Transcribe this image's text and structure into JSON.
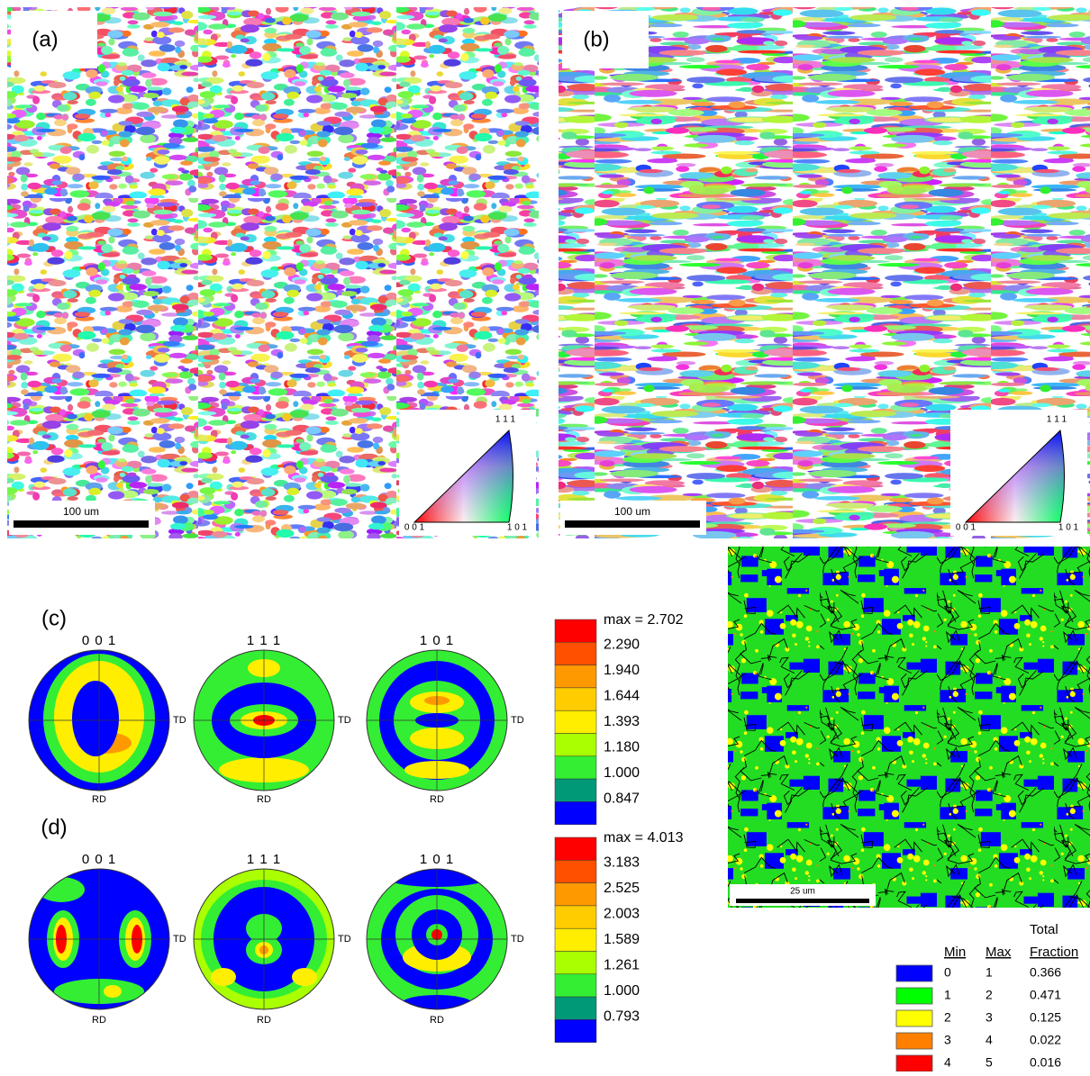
{
  "panels": {
    "a": {
      "label": "(a)",
      "scale_bar": "100 um",
      "ipf": {
        "top": "1 1 1",
        "left": "0 0 1",
        "right": "1 0 1"
      }
    },
    "b": {
      "label": "(b)",
      "scale_bar": "100 um",
      "ipf": {
        "top": "1 1 1",
        "left": "0 0 1",
        "right": "1 0 1"
      }
    }
  },
  "pole_figures": [
    {
      "label": "(c)",
      "figures": [
        {
          "title": "0 0 1",
          "td": "TD",
          "rd": "RD"
        },
        {
          "title": "1 1 1",
          "td": "TD",
          "rd": "RD"
        },
        {
          "title": "1 0 1",
          "td": "TD",
          "rd": "RD"
        }
      ],
      "colorbar": {
        "max": "max = 2.702",
        "levels": [
          "2.290",
          "1.940",
          "1.644",
          "1.393",
          "1.180",
          "1.000",
          "0.847"
        ]
      }
    },
    {
      "label": "(d)",
      "figures": [
        {
          "title": "0 0 1",
          "td": "TD",
          "rd": "RD"
        },
        {
          "title": "1 1 1",
          "td": "TD",
          "rd": "RD"
        },
        {
          "title": "1 0 1",
          "td": "TD",
          "rd": "RD"
        }
      ],
      "colorbar": {
        "max": "max = 4.013",
        "levels": [
          "3.183",
          "2.525",
          "2.003",
          "1.589",
          "1.261",
          "1.000",
          "0.793"
        ]
      }
    }
  ],
  "kam_map": {
    "scale_bar": "25 um",
    "legend": {
      "headers": {
        "min": "Min",
        "max": "Max",
        "total": "Total",
        "fraction": "Fraction"
      },
      "rows": [
        {
          "min": 0,
          "max": 1,
          "fraction": 0.366,
          "color": "#0000ff"
        },
        {
          "min": 1,
          "max": 2,
          "fraction": 0.471,
          "color": "#00ff00"
        },
        {
          "min": 2,
          "max": 3,
          "fraction": 0.125,
          "color": "#ffff00"
        },
        {
          "min": 3,
          "max": 4,
          "fraction": 0.022,
          "color": "#ff8000"
        },
        {
          "min": 4,
          "max": 5,
          "fraction": 0.016,
          "color": "#ff0000"
        }
      ]
    }
  }
}
